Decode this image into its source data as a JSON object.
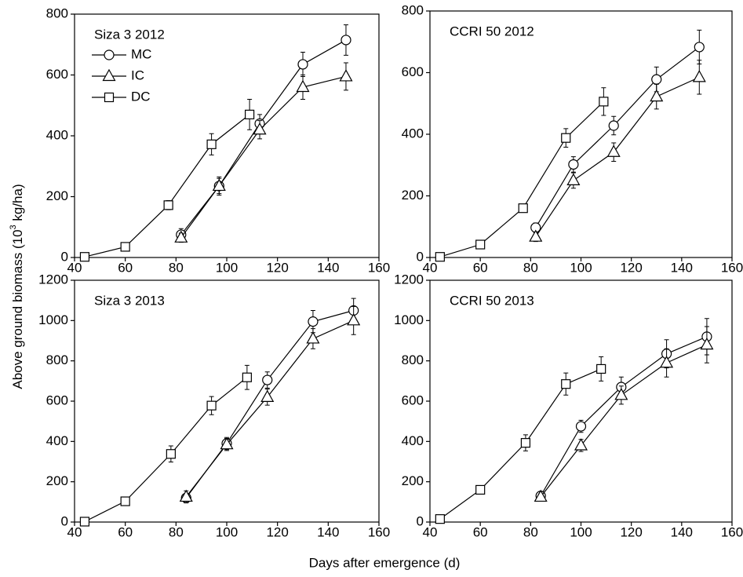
{
  "y_label": [
    "Above ground biomass (10",
    "3",
    " kg/ha)"
  ],
  "x_label": "Days after emergence (d)",
  "chart_data": [
    {
      "type": "line",
      "title": "Siza 3 2012",
      "legend": true,
      "xlim": [
        40,
        160
      ],
      "xticks": [
        40,
        60,
        80,
        100,
        120,
        140,
        160
      ],
      "ylim": [
        0,
        800
      ],
      "yticks": [
        0,
        200,
        400,
        600,
        800
      ],
      "series": [
        {
          "name": "MC",
          "color": "#000000",
          "marker": "circle",
          "x": [
            82,
            97,
            113,
            130,
            147
          ],
          "values": [
            75,
            235,
            440,
            635,
            715
          ],
          "errors": [
            20,
            25,
            30,
            40,
            50
          ]
        },
        {
          "name": "IC",
          "color": "#000000",
          "marker": "triangle",
          "x": [
            82,
            97,
            113,
            130,
            147
          ],
          "values": [
            65,
            235,
            420,
            560,
            595
          ],
          "errors": [
            15,
            30,
            30,
            40,
            45
          ]
        },
        {
          "name": "DC",
          "color": "#000000",
          "marker": "square",
          "x": [
            44,
            60,
            77,
            94,
            109
          ],
          "values": [
            2,
            35,
            172,
            372,
            470
          ],
          "errors": [
            3,
            10,
            15,
            35,
            50
          ]
        }
      ]
    },
    {
      "type": "line",
      "title": "CCRI 50 2012",
      "legend": false,
      "xlim": [
        40,
        160
      ],
      "xticks": [
        40,
        60,
        80,
        100,
        120,
        140,
        160
      ],
      "ylim": [
        0,
        800
      ],
      "yticks": [
        0,
        200,
        400,
        600,
        800
      ],
      "series": [
        {
          "name": "MC",
          "color": "#000000",
          "marker": "circle",
          "x": [
            82,
            97,
            113,
            130,
            147
          ],
          "values": [
            97,
            302,
            428,
            578,
            683
          ],
          "errors": [
            15,
            25,
            30,
            40,
            55
          ]
        },
        {
          "name": "IC",
          "color": "#000000",
          "marker": "triangle",
          "x": [
            82,
            97,
            113,
            130,
            147
          ],
          "values": [
            67,
            250,
            342,
            522,
            585
          ],
          "errors": [
            15,
            25,
            30,
            40,
            55
          ]
        },
        {
          "name": "DC",
          "color": "#000000",
          "marker": "square",
          "x": [
            44,
            60,
            77,
            94,
            109
          ],
          "values": [
            2,
            42,
            160,
            388,
            506
          ],
          "errors": [
            3,
            10,
            10,
            30,
            45
          ]
        }
      ]
    },
    {
      "type": "line",
      "title": "Siza 3 2013",
      "legend": false,
      "xlim": [
        40,
        160
      ],
      "xticks": [
        40,
        60,
        80,
        100,
        120,
        140,
        160
      ],
      "ylim": [
        0,
        1200
      ],
      "yticks": [
        0,
        200,
        400,
        600,
        800,
        1000,
        1200
      ],
      "series": [
        {
          "name": "MC",
          "color": "#000000",
          "marker": "circle",
          "x": [
            84,
            100,
            116,
            134,
            150
          ],
          "values": [
            120,
            390,
            705,
            995,
            1050
          ],
          "errors": [
            20,
            30,
            40,
            55,
            60
          ]
        },
        {
          "name": "IC",
          "color": "#000000",
          "marker": "triangle",
          "x": [
            84,
            100,
            116,
            134,
            150
          ],
          "values": [
            125,
            385,
            620,
            910,
            1000
          ],
          "errors": [
            30,
            30,
            40,
            50,
            70
          ]
        },
        {
          "name": "DC",
          "color": "#000000",
          "marker": "square",
          "x": [
            44,
            60,
            78,
            94,
            108
          ],
          "values": [
            2,
            103,
            338,
            578,
            718
          ],
          "errors": [
            3,
            10,
            40,
            45,
            60
          ]
        }
      ]
    },
    {
      "type": "line",
      "title": "CCRI 50 2013",
      "legend": false,
      "xlim": [
        40,
        160
      ],
      "xticks": [
        40,
        60,
        80,
        100,
        120,
        140,
        160
      ],
      "ylim": [
        0,
        1200
      ],
      "yticks": [
        0,
        200,
        400,
        600,
        800,
        1000,
        1200
      ],
      "series": [
        {
          "name": "MC",
          "color": "#000000",
          "marker": "circle",
          "x": [
            84,
            100,
            116,
            134,
            150
          ],
          "values": [
            130,
            475,
            670,
            835,
            920
          ],
          "errors": [
            15,
            30,
            50,
            70,
            90
          ]
        },
        {
          "name": "IC",
          "color": "#000000",
          "marker": "triangle",
          "x": [
            84,
            100,
            116,
            134,
            150
          ],
          "values": [
            125,
            380,
            630,
            790,
            880
          ],
          "errors": [
            15,
            30,
            45,
            70,
            90
          ]
        },
        {
          "name": "DC",
          "color": "#000000",
          "marker": "square",
          "x": [
            44,
            60,
            78,
            94,
            108
          ],
          "values": [
            15,
            160,
            393,
            685,
            760
          ],
          "errors": [
            10,
            10,
            40,
            55,
            60
          ]
        }
      ]
    }
  ]
}
